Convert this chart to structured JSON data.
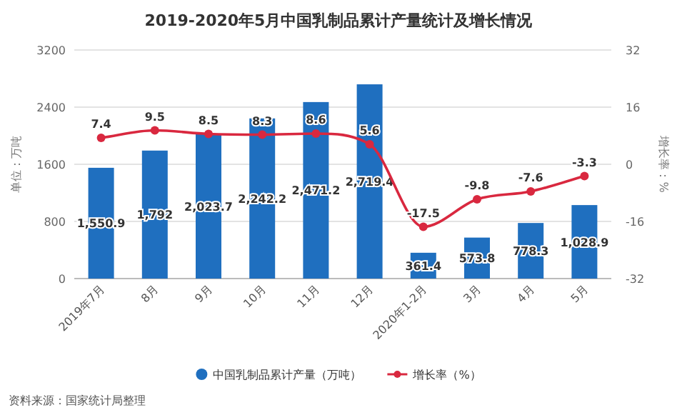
{
  "chart_data": {
    "type": "bar",
    "title": "2019-2020年5月中国乳制品累计产量统计及增长情况",
    "categories": [
      "2019年7月",
      "8月",
      "9月",
      "10月",
      "11月",
      "12月",
      "2020年1-2月",
      "3月",
      "4月",
      "5月"
    ],
    "series": [
      {
        "name": "中国乳制品累计产量（万吨）",
        "color": "#1f6fbf",
        "values": [
          1550.9,
          1792,
          2023.7,
          2242.2,
          2471.2,
          2719.4,
          361.4,
          573.8,
          778.3,
          1028.9
        ],
        "value_labels": [
          "1,550.9",
          "1,792",
          "2,023.7",
          "2,242.2",
          "2,471.2",
          "2,719.4",
          "361.4",
          "573.8",
          "778.3",
          "1,028.9"
        ]
      },
      {
        "name": "增长率（%）",
        "type": "line",
        "axis": "y2",
        "color": "#d9283f",
        "marker": "circle",
        "values": [
          7.4,
          9.5,
          8.5,
          8.3,
          8.6,
          5.6,
          -17.5,
          -9.8,
          -7.6,
          -3.3
        ],
        "value_labels": [
          "7.4",
          "9.5",
          "8.5",
          "8.3",
          "8.6",
          "5.6",
          "-17.5",
          "-9.8",
          "-7.6",
          "-3.3"
        ]
      }
    ],
    "ylim": [
      0,
      3200
    ],
    "yticks": [
      0,
      800,
      1600,
      2400,
      3200
    ],
    "y2lim": [
      -32,
      32
    ],
    "y2ticks": [
      {
        "value": -32,
        "label": "-32"
      },
      {
        "value": -16,
        "label": "-16"
      },
      0,
      16,
      32
    ],
    "ylabel": "单位：万吨",
    "y2label": "增长率：%",
    "grid": "y",
    "legend": "bottom",
    "annotations": [
      "资料来源：国家统计局整理"
    ]
  }
}
